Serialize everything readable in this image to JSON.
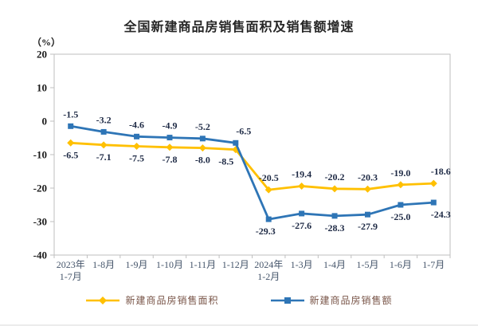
{
  "page": {
    "background": "#FFFFFF"
  },
  "chart_data": {
    "type": "line",
    "title": "全国新建商品房销售面积及销售额增速",
    "unit_label": "（%）",
    "categories": [
      [
        "2023年",
        "1-7月"
      ],
      [
        "1-8月"
      ],
      [
        "1-9月"
      ],
      [
        "1-10月"
      ],
      [
        "1-11月"
      ],
      [
        "1-12月"
      ],
      [
        "2024年",
        "1-2月"
      ],
      [
        "1-3月"
      ],
      [
        "1-4月"
      ],
      [
        "1-5月"
      ],
      [
        "1-6月"
      ],
      [
        "1-7月"
      ]
    ],
    "series": [
      {
        "name": "新建商品房销售面积",
        "color": "#FFC000",
        "marker": "diamond",
        "values": [
          -6.5,
          -7.1,
          -7.5,
          -7.8,
          -8.0,
          -8.5,
          -20.5,
          -19.4,
          -20.2,
          -20.3,
          -19.0,
          -18.6
        ]
      },
      {
        "name": "新建商品房销售额",
        "color": "#2E75B6",
        "marker": "square",
        "values": [
          -1.5,
          -3.2,
          -4.6,
          -4.9,
          -5.2,
          -6.5,
          -29.3,
          -27.6,
          -28.3,
          -27.9,
          -25.0,
          -24.3
        ]
      }
    ],
    "y_axis": {
      "ticks": [
        20,
        10,
        0,
        -10,
        -20,
        -30,
        -40
      ],
      "min": -40,
      "max": 20
    },
    "grid": false,
    "legend_position": "bottom",
    "colors": {
      "axis": "#BFBFBF",
      "data_label": "#1E2A45",
      "x_tick_label": "#44546A",
      "y_tick_label": "#1A1A1A",
      "legend_text": "#795548",
      "title": "#262626"
    }
  }
}
